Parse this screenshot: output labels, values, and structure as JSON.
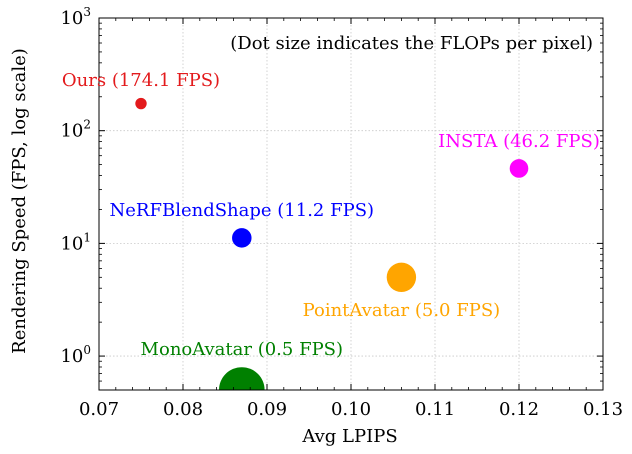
{
  "chart_data": {
    "type": "scatter",
    "title": "",
    "annotation": "(Dot size indicates the FLOPs per pixel)",
    "xlabel": "Avg LPIPS",
    "ylabel": "Rendering Speed (FPS, log scale)",
    "xlim": [
      0.07,
      0.13
    ],
    "ylim": [
      0.5,
      1000
    ],
    "yscale": "log",
    "grid": true,
    "x_ticks": [
      {
        "value": 0.07,
        "label": "0.07"
      },
      {
        "value": 0.08,
        "label": "0.08"
      },
      {
        "value": 0.09,
        "label": "0.09"
      },
      {
        "value": 0.1,
        "label": "0.10"
      },
      {
        "value": 0.11,
        "label": "0.11"
      },
      {
        "value": 0.12,
        "label": "0.12"
      },
      {
        "value": 0.13,
        "label": "0.13"
      }
    ],
    "y_ticks": [
      {
        "value": 1,
        "base": "10",
        "exp": "0"
      },
      {
        "value": 10,
        "base": "10",
        "exp": "1"
      },
      {
        "value": 100,
        "base": "10",
        "exp": "2"
      },
      {
        "value": 1000,
        "base": "10",
        "exp": "3"
      }
    ],
    "points": [
      {
        "name": "Ours",
        "x": 0.075,
        "y": 174.1,
        "size": 0.3,
        "color": "#e31a1c",
        "label": "Ours (174.1 FPS)",
        "label_pos": "above"
      },
      {
        "name": "INSTA",
        "x": 0.12,
        "y": 46.2,
        "size": 0.7,
        "color": "#ff00ff",
        "label": "INSTA (46.2 FPS)",
        "label_pos": "above"
      },
      {
        "name": "NeRFBlendShape",
        "x": 0.087,
        "y": 11.2,
        "size": 0.75,
        "color": "#0000ff",
        "label": "NeRFBlendShape (11.2 FPS)",
        "label_pos": "above"
      },
      {
        "name": "PointAvatar",
        "x": 0.106,
        "y": 5.0,
        "size": 1.3,
        "color": "#ffa500",
        "label": "PointAvatar (5.0 FPS)",
        "label_pos": "below"
      },
      {
        "name": "MonoAvatar",
        "x": 0.087,
        "y": 0.5,
        "size": 2.2,
        "color": "#008000",
        "label": "MonoAvatar (0.5 FPS)",
        "label_pos": "above"
      }
    ]
  }
}
